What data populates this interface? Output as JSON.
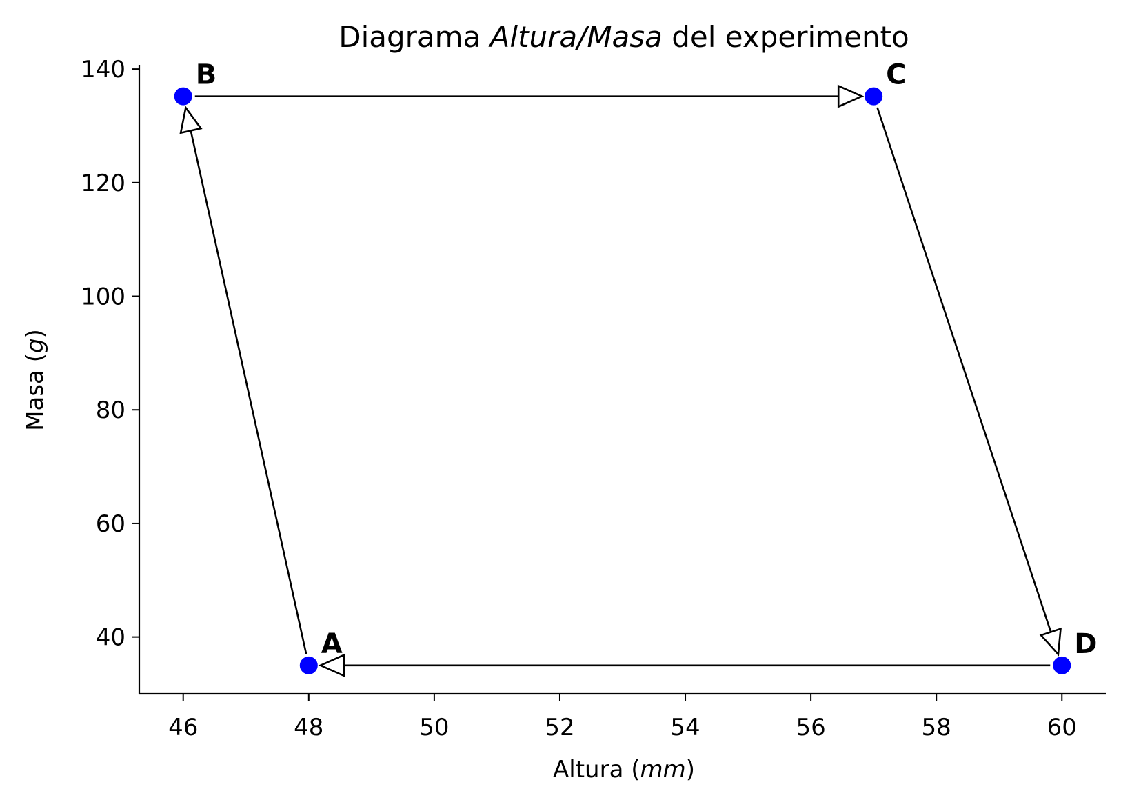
{
  "chart_data": {
    "type": "scatter",
    "title": {
      "prefix": "Diagrama ",
      "italic": "Altura/Masa",
      "suffix": " del experimento"
    },
    "xlabel": {
      "prefix": "Altura (",
      "italic": "mm",
      "suffix": ")"
    },
    "ylabel": {
      "prefix": "Masa (",
      "italic": "g",
      "suffix": ")"
    },
    "xlim": [
      45.3,
      60.7
    ],
    "ylim": [
      30,
      140.5
    ],
    "xticks": [
      46,
      48,
      50,
      52,
      54,
      56,
      58,
      60
    ],
    "yticks": [
      40,
      60,
      80,
      100,
      120,
      140
    ],
    "grid": false,
    "point_color": "#0000ff",
    "arrow_color": "#000000",
    "points": [
      {
        "label": "A",
        "x": 48,
        "y": 35
      },
      {
        "label": "B",
        "x": 46,
        "y": 135.2
      },
      {
        "label": "C",
        "x": 57,
        "y": 135.2
      },
      {
        "label": "D",
        "x": 60,
        "y": 35
      }
    ],
    "arrows": [
      {
        "from": "A",
        "to": "B"
      },
      {
        "from": "B",
        "to": "C"
      },
      {
        "from": "C",
        "to": "D"
      },
      {
        "from": "D",
        "to": "A"
      }
    ]
  }
}
